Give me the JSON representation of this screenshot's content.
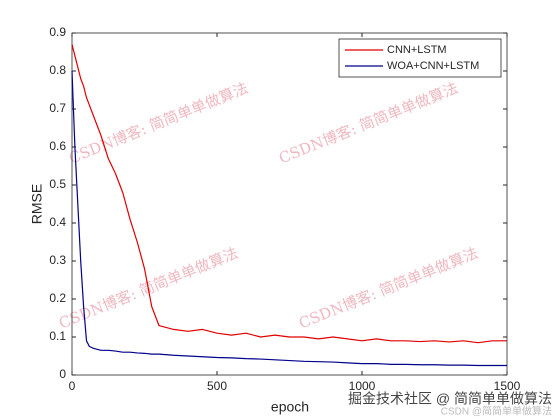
{
  "chart_data": {
    "type": "line",
    "x": [
      0,
      10,
      20,
      30,
      40,
      50,
      60,
      75,
      100,
      125,
      150,
      175,
      200,
      225,
      250,
      275,
      300,
      350,
      400,
      450,
      500,
      550,
      600,
      650,
      700,
      750,
      800,
      850,
      900,
      950,
      1000,
      1050,
      1100,
      1150,
      1200,
      1250,
      1300,
      1350,
      1400,
      1450,
      1500
    ],
    "series": [
      {
        "name": "CNN+LSTM",
        "color": "#e00000",
        "values": [
          0.87,
          0.84,
          0.81,
          0.78,
          0.76,
          0.73,
          0.71,
          0.68,
          0.63,
          0.57,
          0.53,
          0.48,
          0.41,
          0.35,
          0.28,
          0.18,
          0.13,
          0.12,
          0.115,
          0.12,
          0.11,
          0.105,
          0.11,
          0.1,
          0.105,
          0.1,
          0.1,
          0.095,
          0.1,
          0.095,
          0.09,
          0.095,
          0.09,
          0.09,
          0.088,
          0.09,
          0.087,
          0.09,
          0.085,
          0.09,
          0.09
        ]
      },
      {
        "name": "WOA+CNN+LSTM",
        "color": "#00008b",
        "values": [
          0.8,
          0.6,
          0.45,
          0.3,
          0.18,
          0.09,
          0.075,
          0.07,
          0.065,
          0.065,
          0.063,
          0.06,
          0.06,
          0.058,
          0.057,
          0.055,
          0.055,
          0.052,
          0.05,
          0.048,
          0.046,
          0.045,
          0.043,
          0.042,
          0.04,
          0.038,
          0.036,
          0.035,
          0.034,
          0.032,
          0.03,
          0.03,
          0.028,
          0.028,
          0.027,
          0.027,
          0.026,
          0.026,
          0.025,
          0.025,
          0.025
        ]
      }
    ],
    "x_label": "epoch",
    "y_label": "RMSE",
    "xlim": [
      0,
      1500
    ],
    "xticks": [
      0,
      500,
      1000,
      1500
    ],
    "ylim": [
      0,
      0.9
    ],
    "yticks": [
      0,
      0.1,
      0.2,
      0.3,
      0.4,
      0.5,
      0.6,
      0.7,
      0.8,
      0.9
    ],
    "grid": false,
    "legend": "top-right"
  },
  "watermark": "CSDN博客: 简简单单做算法",
  "footer_watermark": "掘金技术社区 @ 简简单单做算法",
  "footer_watermark_2": "CSDN @简简单单做算法"
}
